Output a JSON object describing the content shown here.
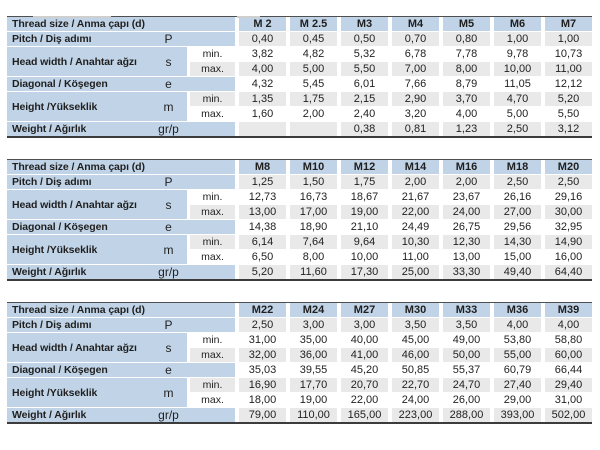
{
  "colors": {
    "header_blue": "#c1d4e7",
    "stripe_gray": "#e9e9e9",
    "rule_top": "#4f4f4f",
    "rule_bottom": "#3c3c3c",
    "text": "#1f1f1f"
  },
  "row_labels": {
    "thread": "Thread size / Anma çapı (d)",
    "pitch": "Pitch / Diş adımı",
    "head_width": "Head width / Anahtar ağzı",
    "diagonal": "Diagonal / Köşegen",
    "height": "Height /Yükseklik",
    "weight": "Weight / Ağırlık",
    "symbols": {
      "pitch": "P",
      "head_width": "s",
      "diagonal": "e",
      "height": "m",
      "weight": "gr/p"
    },
    "min": "min.",
    "max": "max."
  },
  "row_structure": [
    {
      "kind": "single",
      "label_key": "pitch",
      "value_key": "pitch"
    },
    {
      "kind": "minmax",
      "label_key": "head_width",
      "min_key": "head_width_min",
      "max_key": "head_width_max"
    },
    {
      "kind": "single",
      "label_key": "diagonal",
      "value_key": "diagonal"
    },
    {
      "kind": "minmax",
      "label_key": "height",
      "min_key": "height_min",
      "max_key": "height_max"
    },
    {
      "kind": "single",
      "label_key": "weight",
      "value_key": "weight"
    }
  ],
  "tables": [
    {
      "sizes": [
        "M 2",
        "M 2.5",
        "M3",
        "M4",
        "M5",
        "M6",
        "M7"
      ],
      "pitch": [
        "0,40",
        "0,45",
        "0,50",
        "0,70",
        "0,80",
        "1,00",
        "1,00"
      ],
      "head_width_min": [
        "3,82",
        "4,82",
        "5,32",
        "6,78",
        "7,78",
        "9,78",
        "10,73"
      ],
      "head_width_max": [
        "4,00",
        "5,00",
        "5,50",
        "7,00",
        "8,00",
        "10,00",
        "11,00"
      ],
      "diagonal": [
        "4,32",
        "5,45",
        "6,01",
        "7,66",
        "8,79",
        "11,05",
        "12,12"
      ],
      "height_min": [
        "1,35",
        "1,75",
        "2,15",
        "2,90",
        "3,70",
        "4,70",
        "5,20"
      ],
      "height_max": [
        "1,60",
        "2,00",
        "2,40",
        "3,20",
        "4,00",
        "5,00",
        "5,50"
      ],
      "weight": [
        "",
        "",
        "0,38",
        "0,81",
        "1,23",
        "2,50",
        "3,12"
      ]
    },
    {
      "sizes": [
        "M8",
        "M10",
        "M12",
        "M14",
        "M16",
        "M18",
        "M20"
      ],
      "pitch": [
        "1,25",
        "1,50",
        "1,75",
        "2,00",
        "2,00",
        "2,50",
        "2,50"
      ],
      "head_width_min": [
        "12,73",
        "16,73",
        "18,67",
        "21,67",
        "23,67",
        "26,16",
        "29,16"
      ],
      "head_width_max": [
        "13,00",
        "17,00",
        "19,00",
        "22,00",
        "24,00",
        "27,00",
        "30,00"
      ],
      "diagonal": [
        "14,38",
        "18,90",
        "21,10",
        "24,49",
        "26,75",
        "29,56",
        "32,95"
      ],
      "height_min": [
        "6,14",
        "7,64",
        "9,64",
        "10,30",
        "12,30",
        "14,30",
        "14,90"
      ],
      "height_max": [
        "6,50",
        "8,00",
        "10,00",
        "11,00",
        "13,00",
        "15,00",
        "16,00"
      ],
      "weight": [
        "5,20",
        "11,60",
        "17,30",
        "25,00",
        "33,30",
        "49,40",
        "64,40"
      ]
    },
    {
      "sizes": [
        "M22",
        "M24",
        "M27",
        "M30",
        "M33",
        "M36",
        "M39"
      ],
      "pitch": [
        "2,50",
        "3,00",
        "3,00",
        "3,50",
        "3,50",
        "4,00",
        "4,00"
      ],
      "head_width_min": [
        "31,00",
        "35,00",
        "40,00",
        "45,00",
        "49,00",
        "53,80",
        "58,80"
      ],
      "head_width_max": [
        "32,00",
        "36,00",
        "41,00",
        "46,00",
        "50,00",
        "55,00",
        "60,00"
      ],
      "diagonal": [
        "35,03",
        "39,55",
        "45,20",
        "50,85",
        "55,37",
        "60,79",
        "66,44"
      ],
      "height_min": [
        "16,90",
        "17,70",
        "20,70",
        "22,70",
        "24,70",
        "27,40",
        "29,40"
      ],
      "height_max": [
        "18,00",
        "19,00",
        "22,00",
        "24,00",
        "26,00",
        "29,00",
        "31,00"
      ],
      "weight": [
        "79,00",
        "110,00",
        "165,00",
        "223,00",
        "288,00",
        "393,00",
        "502,00"
      ]
    }
  ]
}
